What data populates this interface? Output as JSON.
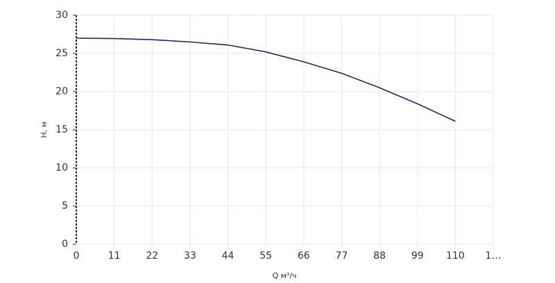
{
  "chart_data": {
    "type": "line",
    "x_label": "Q м³/ч",
    "y_label": "H, м",
    "x": [
      0,
      11,
      22,
      33,
      44,
      55,
      66,
      77,
      88,
      99,
      110
    ],
    "series": [
      {
        "name": "H",
        "color": "#1b2a5e",
        "values": [
          27,
          26.95,
          26.8,
          26.5,
          26.1,
          25.2,
          23.9,
          22.4,
          20.5,
          18.4,
          16.1
        ]
      }
    ],
    "xlim": [
      0,
      121
    ],
    "xticks": [
      0,
      11,
      22,
      33,
      44,
      55,
      66,
      77,
      88,
      99,
      110,
      {
        "value": 121,
        "label": "1…"
      }
    ],
    "ylim": [
      0,
      30
    ],
    "yticks": [
      0,
      5,
      10,
      15,
      20,
      25,
      30
    ],
    "grid": true
  }
}
